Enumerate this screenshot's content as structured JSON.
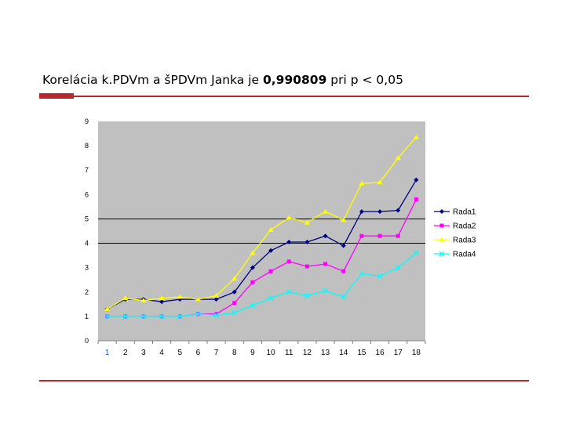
{
  "slide": {
    "title_part1": "Korelácia  k.PDVm a šPDVm Janka je ",
    "title_value": "0,990809",
    "title_part2": " pri p < 0,05"
  },
  "colors": {
    "accent_rule": "#b9272a",
    "plot_background": "#c0c0c0"
  },
  "chart_data": {
    "type": "line",
    "title": "",
    "xlabel": "",
    "ylabel": "",
    "categories": [
      "1",
      "2",
      "3",
      "4",
      "5",
      "6",
      "7",
      "8",
      "9",
      "10",
      "11",
      "12",
      "13",
      "14",
      "15",
      "16",
      "17",
      "18"
    ],
    "ylim": [
      0,
      9
    ],
    "yticks": [
      "0",
      "1",
      "2",
      "3",
      "4",
      "5",
      "6",
      "7",
      "8",
      "9"
    ],
    "gridlines_at": [
      4,
      5
    ],
    "legend_position": "right",
    "series": [
      {
        "name": "Rada1",
        "color": "#000080",
        "marker": "diamond",
        "values": [
          1.3,
          1.7,
          1.7,
          1.6,
          1.7,
          1.7,
          1.7,
          2.0,
          3.0,
          3.7,
          4.05,
          4.05,
          4.3,
          3.9,
          5.3,
          5.3,
          5.35,
          6.6
        ]
      },
      {
        "name": "Rada2",
        "color": "#ff00ff",
        "marker": "square",
        "values": [
          1.0,
          1.0,
          1.0,
          1.0,
          1.0,
          1.1,
          1.1,
          1.55,
          2.4,
          2.85,
          3.25,
          3.05,
          3.15,
          2.85,
          4.3,
          4.3,
          4.3,
          5.8
        ]
      },
      {
        "name": "Rada3",
        "color": "#ffff00",
        "marker": "triangle",
        "values": [
          1.3,
          1.75,
          1.65,
          1.75,
          1.8,
          1.7,
          1.85,
          2.55,
          3.6,
          4.55,
          5.05,
          4.85,
          5.3,
          4.95,
          6.45,
          6.5,
          7.5,
          8.35
        ]
      },
      {
        "name": "Rada4",
        "color": "#00ffff",
        "marker": "x",
        "values": [
          1.0,
          1.0,
          1.0,
          1.0,
          1.0,
          1.1,
          1.05,
          1.15,
          1.45,
          1.75,
          2.0,
          1.85,
          2.05,
          1.8,
          2.75,
          2.65,
          3.0,
          3.6
        ]
      }
    ]
  }
}
